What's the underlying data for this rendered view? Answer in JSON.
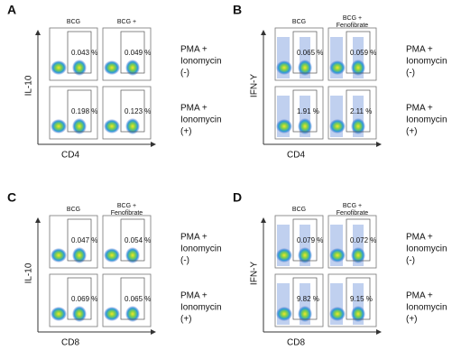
{
  "panels": [
    {
      "letter": "A",
      "columns": [
        [
          "BCG"
        ],
        [
          "BCG +"
        ]
      ],
      "y_axis": "IL-10",
      "x_axis": "CD4",
      "rows": [
        {
          "gates": [
            "0.043 %",
            "0.049 %"
          ],
          "label": [
            "PMA +",
            "Ionomycin",
            "(-)"
          ]
        },
        {
          "gates": [
            "0.198 %",
            "0.123 %"
          ],
          "label": [
            "PMA +",
            "Ionomycin",
            "(+)"
          ]
        }
      ]
    },
    {
      "letter": "B",
      "columns": [
        [
          "BCG"
        ],
        [
          "BCG +",
          "Fenofibrate"
        ]
      ],
      "y_axis": "IFN-Y",
      "x_axis": "CD4",
      "rows": [
        {
          "gates": [
            "0.065 %",
            "0.059 %"
          ],
          "label": [
            "PMA +",
            "Ionomycin",
            "(-)"
          ]
        },
        {
          "gates": [
            "1.91 %",
            "2.11 %"
          ],
          "label": [
            "PMA +",
            "Ionomycin",
            "(+)"
          ]
        }
      ]
    },
    {
      "letter": "C",
      "columns": [
        [
          "BCG"
        ],
        [
          "BCG +",
          "Fenofibrate"
        ]
      ],
      "y_axis": "IL-10",
      "x_axis": "CD8",
      "rows": [
        {
          "gates": [
            "0.047 %",
            "0.054 %"
          ],
          "label": [
            "PMA +",
            "Ionomycin",
            "(-)"
          ]
        },
        {
          "gates": [
            "0.069 %",
            "0.065 %"
          ],
          "label": [
            "PMA +",
            "Ionomycin",
            "(+)"
          ]
        }
      ]
    },
    {
      "letter": "D",
      "columns": [
        [
          "BCG"
        ],
        [
          "BCG +",
          "Fenofibrate"
        ]
      ],
      "y_axis": "IFN-Y",
      "x_axis": "CD8",
      "rows": [
        {
          "gates": [
            "0.079 %",
            "0.072 %"
          ],
          "label": [
            "PMA +",
            "Ionomycin",
            "(-)"
          ]
        },
        {
          "gates": [
            "9.82 %",
            "9.15 %"
          ],
          "label": [
            "PMA +",
            "Ionomycin",
            "(+)"
          ]
        }
      ]
    }
  ]
}
